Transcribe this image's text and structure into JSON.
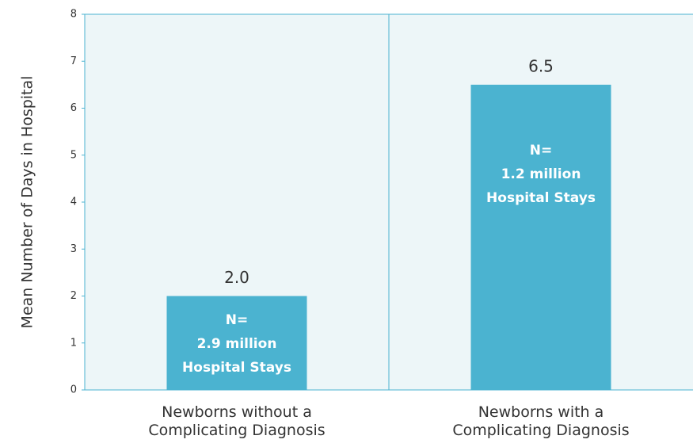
{
  "chart_data": {
    "type": "bar",
    "y_label": "Mean Number of Days in Hospital",
    "categories": [
      "Newborns without a Complicating Diagnosis",
      "Newborns with a Complicating Diagnosis"
    ],
    "values": [
      2.0,
      6.5
    ],
    "value_labels": [
      "2.0",
      "6.5"
    ],
    "bar_notes": [
      [
        "N=",
        "2.9 million",
        "Hospital Stays"
      ],
      [
        "N=",
        "1.2 million",
        "Hospital Stays"
      ]
    ],
    "color": "#4bb3d0",
    "ylim": [
      0,
      8
    ],
    "yticks": [
      0,
      1,
      2,
      3,
      4,
      5,
      6,
      7,
      8
    ],
    "grid": false
  }
}
